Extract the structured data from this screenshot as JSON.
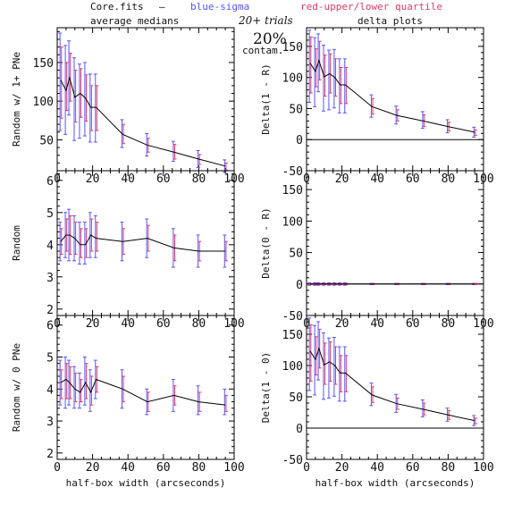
{
  "header": {
    "file_label": "Core.fits",
    "dash": "—",
    "blue_label": "blue-sigma",
    "red_label": "red-upper/lower quartile",
    "col_left_title": "average medians",
    "col_right_title": "delta plots",
    "trials": "20+ trials",
    "contam_pct": "20%",
    "contam_label": "contam."
  },
  "colors": {
    "blue": "#5555ff",
    "red": "#e03a66",
    "line": "#000000",
    "frame": "#000000"
  },
  "chart_data": [
    {
      "type": "line",
      "panel": "left-top",
      "ylabel": "Random w/ 1+ PNe",
      "xlabel": "",
      "xlim": [
        0,
        100
      ],
      "ylim": [
        10,
        195
      ],
      "yticks": [
        50,
        100,
        150
      ],
      "xticks": [
        0,
        20,
        40,
        60,
        80,
        100
      ],
      "x": [
        2,
        5,
        7,
        10,
        13,
        16,
        19,
        22,
        37,
        51,
        66,
        80,
        95
      ],
      "y": [
        127,
        114,
        130,
        105,
        110,
        104,
        92,
        92,
        57,
        43,
        34,
        25,
        16
      ],
      "blue_low": [
        62,
        57,
        82,
        49,
        52,
        55,
        47,
        47,
        40,
        29,
        22,
        14,
        8
      ],
      "blue_high": [
        188,
        172,
        178,
        156,
        148,
        150,
        135,
        135,
        76,
        58,
        48,
        36,
        24
      ],
      "red_low": [
        78,
        88,
        100,
        73,
        79,
        74,
        62,
        62,
        45,
        34,
        25,
        18,
        11
      ],
      "red_high": [
        170,
        150,
        162,
        140,
        142,
        134,
        120,
        120,
        70,
        52,
        44,
        31,
        20
      ]
    },
    {
      "type": "line",
      "panel": "right-top",
      "ylabel": "Delta(1 - R)",
      "xlabel": "",
      "xlim": [
        0,
        100
      ],
      "ylim": [
        -50,
        180
      ],
      "yticks": [
        -50,
        0,
        50,
        100,
        150
      ],
      "xticks": [
        0,
        20,
        40,
        60,
        80,
        100
      ],
      "x": [
        2,
        5,
        7,
        10,
        13,
        16,
        19,
        22,
        37,
        51,
        66,
        80,
        95
      ],
      "y": [
        123,
        110,
        127,
        101,
        106,
        100,
        88,
        88,
        53,
        39,
        30,
        21,
        12
      ],
      "blue_low": [
        60,
        53,
        77,
        46,
        48,
        51,
        43,
        43,
        36,
        25,
        18,
        11,
        4
      ],
      "blue_high": [
        176,
        164,
        170,
        152,
        144,
        145,
        130,
        130,
        72,
        54,
        45,
        32,
        20
      ],
      "red_low": [
        75,
        85,
        96,
        70,
        75,
        70,
        58,
        58,
        41,
        30,
        21,
        14,
        7
      ],
      "red_high": [
        165,
        146,
        158,
        136,
        138,
        130,
        116,
        116,
        66,
        48,
        40,
        28,
        16
      ]
    },
    {
      "type": "line",
      "panel": "left-mid",
      "ylabel": "Random",
      "xlabel": "",
      "xlim": [
        0,
        100
      ],
      "ylim": [
        1.8,
        6.3
      ],
      "yticks": [
        2,
        3,
        4,
        5,
        6
      ],
      "xticks": [
        0,
        20,
        40,
        60,
        80,
        100
      ],
      "x": [
        2,
        5,
        7,
        10,
        13,
        16,
        19,
        22,
        37,
        51,
        66,
        80,
        95
      ],
      "y": [
        4.1,
        4.3,
        4.3,
        4.2,
        4.0,
        4.0,
        4.3,
        4.2,
        4.1,
        4.2,
        3.9,
        3.8,
        3.8
      ],
      "blue_low": [
        3.5,
        3.6,
        3.5,
        3.5,
        3.4,
        3.4,
        3.6,
        3.6,
        3.5,
        3.6,
        3.3,
        3.3,
        3.3
      ],
      "blue_high": [
        4.7,
        5.0,
        5.1,
        4.9,
        4.7,
        4.7,
        5.0,
        4.9,
        4.7,
        4.8,
        4.5,
        4.3,
        4.3
      ],
      "red_low": [
        3.7,
        3.8,
        3.7,
        3.7,
        3.6,
        3.6,
        3.8,
        3.8,
        3.7,
        3.8,
        3.5,
        3.5,
        3.5
      ],
      "red_high": [
        4.5,
        4.8,
        4.9,
        4.7,
        4.5,
        4.5,
        4.8,
        4.7,
        4.5,
        4.6,
        4.3,
        4.1,
        4.1
      ]
    },
    {
      "type": "line",
      "panel": "right-mid",
      "ylabel": "Delta(0 - R)",
      "xlabel": "",
      "xlim": [
        0,
        100
      ],
      "ylim": [
        -50,
        180
      ],
      "yticks": [
        -50,
        0,
        50,
        100,
        150
      ],
      "xticks": [
        0,
        20,
        40,
        60,
        80,
        100
      ],
      "x": [
        2,
        5,
        7,
        10,
        13,
        16,
        19,
        22,
        37,
        51,
        66,
        80,
        95
      ],
      "y": [
        0,
        0,
        0,
        0,
        0,
        0,
        0,
        0,
        0,
        0,
        0,
        0,
        0
      ],
      "blue_low": [
        -2,
        -2,
        -2,
        -2,
        -2,
        -2,
        -2,
        -2,
        -1,
        -1,
        -1,
        -1,
        -1
      ],
      "blue_high": [
        2,
        2,
        2,
        2,
        2,
        2,
        2,
        2,
        1,
        1,
        1,
        1,
        1
      ],
      "red_low": [
        -1,
        -1,
        -1,
        -1,
        -1,
        -1,
        -1,
        -1,
        -1,
        -1,
        -1,
        -1,
        -1
      ],
      "red_high": [
        1,
        1,
        1,
        1,
        1,
        1,
        1,
        1,
        1,
        1,
        1,
        1,
        1
      ]
    },
    {
      "type": "line",
      "panel": "left-bot",
      "ylabel": "Random w/ 0 PNe",
      "xlabel": "half-box width (arcseconds)",
      "xlim": [
        0,
        100
      ],
      "ylim": [
        1.8,
        6.3
      ],
      "yticks": [
        2,
        3,
        4,
        5,
        6
      ],
      "xticks": [
        0,
        20,
        40,
        60,
        80,
        100
      ],
      "x": [
        2,
        5,
        7,
        10,
        13,
        16,
        19,
        22,
        37,
        51,
        66,
        80,
        95
      ],
      "y": [
        4.2,
        4.3,
        4.2,
        4.0,
        3.9,
        4.2,
        3.9,
        4.3,
        4.0,
        3.6,
        3.8,
        3.6,
        3.5
      ],
      "blue_low": [
        3.5,
        3.4,
        3.5,
        3.4,
        3.4,
        3.5,
        3.3,
        3.7,
        3.4,
        3.2,
        3.3,
        3.2,
        3.2
      ],
      "blue_high": [
        4.9,
        5.0,
        4.9,
        4.7,
        4.5,
        5.0,
        4.6,
        4.9,
        4.6,
        4.0,
        4.3,
        4.1,
        4.0
      ],
      "red_low": [
        3.7,
        3.7,
        3.7,
        3.6,
        3.6,
        3.7,
        3.5,
        3.9,
        3.6,
        3.3,
        3.5,
        3.3,
        3.3
      ],
      "red_high": [
        4.6,
        4.8,
        4.7,
        4.5,
        4.3,
        4.8,
        4.4,
        4.7,
        4.4,
        3.9,
        4.1,
        3.9,
        3.8
      ]
    },
    {
      "type": "line",
      "panel": "right-bot",
      "ylabel": "Delta(1 - 0)",
      "xlabel": "half-box width (arcseconds)",
      "xlim": [
        0,
        100
      ],
      "ylim": [
        -50,
        180
      ],
      "yticks": [
        -50,
        0,
        50,
        100,
        150
      ],
      "xticks": [
        0,
        20,
        40,
        60,
        80,
        100
      ],
      "x": [
        2,
        5,
        7,
        10,
        13,
        16,
        19,
        22,
        37,
        51,
        66,
        80,
        95
      ],
      "y": [
        123,
        110,
        127,
        101,
        106,
        100,
        88,
        88,
        53,
        39,
        30,
        21,
        12
      ],
      "blue_low": [
        60,
        53,
        77,
        46,
        48,
        51,
        43,
        43,
        36,
        25,
        18,
        11,
        4
      ],
      "blue_high": [
        176,
        164,
        170,
        152,
        144,
        145,
        130,
        130,
        72,
        54,
        45,
        32,
        20
      ],
      "red_low": [
        75,
        85,
        96,
        70,
        75,
        70,
        58,
        58,
        41,
        30,
        21,
        14,
        7
      ],
      "red_high": [
        165,
        146,
        158,
        136,
        138,
        130,
        116,
        116,
        66,
        48,
        40,
        28,
        16
      ]
    }
  ]
}
